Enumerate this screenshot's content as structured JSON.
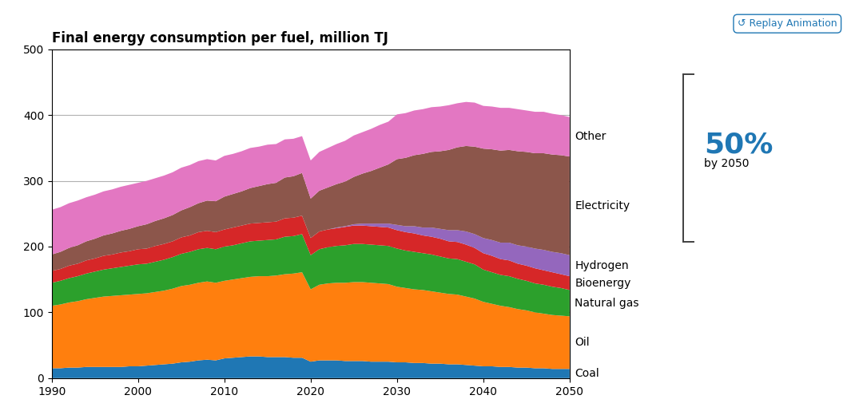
{
  "chart_data": {
    "type": "area",
    "stacked": true,
    "title": "Final energy consumption per fuel, million TJ",
    "x": [
      1990,
      1991,
      1992,
      1993,
      1994,
      1995,
      1996,
      1997,
      1998,
      1999,
      2000,
      2001,
      2002,
      2003,
      2004,
      2005,
      2006,
      2007,
      2008,
      2009,
      2010,
      2011,
      2012,
      2013,
      2014,
      2015,
      2016,
      2017,
      2018,
      2019,
      2020,
      2021,
      2022,
      2023,
      2024,
      2025,
      2026,
      2027,
      2028,
      2029,
      2030,
      2031,
      2032,
      2033,
      2034,
      2035,
      2036,
      2037,
      2038,
      2039,
      2040,
      2041,
      2042,
      2043,
      2044,
      2045,
      2046,
      2047,
      2048,
      2049,
      2050
    ],
    "series": [
      {
        "name": "Coal",
        "values": [
          15,
          15,
          16,
          16,
          17,
          17,
          17,
          17,
          17,
          18,
          18,
          19,
          20,
          21,
          22,
          24,
          25,
          27,
          28,
          27,
          30,
          31,
          32,
          33,
          33,
          32,
          32,
          32,
          31,
          31,
          25,
          27,
          27,
          27,
          26,
          26,
          26,
          25,
          25,
          25,
          24,
          24,
          23,
          23,
          22,
          22,
          21,
          21,
          20,
          19,
          18,
          18,
          17,
          17,
          16,
          16,
          15,
          15,
          14,
          14,
          14
        ]
      },
      {
        "name": "Oil",
        "values": [
          95,
          97,
          99,
          101,
          103,
          105,
          107,
          108,
          109,
          109,
          110,
          110,
          111,
          112,
          114,
          116,
          117,
          118,
          119,
          118,
          118,
          119,
          120,
          121,
          122,
          123,
          124,
          126,
          128,
          130,
          110,
          115,
          117,
          118,
          119,
          120,
          120,
          120,
          119,
          118,
          115,
          113,
          112,
          111,
          110,
          108,
          107,
          106,
          104,
          102,
          98,
          95,
          93,
          91,
          89,
          87,
          85,
          83,
          82,
          81,
          80
        ]
      },
      {
        "name": "Natural gas",
        "values": [
          35,
          36,
          37,
          38,
          39,
          40,
          41,
          42,
          43,
          44,
          45,
          45,
          46,
          47,
          48,
          49,
          50,
          51,
          51,
          51,
          52,
          52,
          53,
          54,
          54,
          55,
          55,
          57,
          57,
          58,
          52,
          54,
          55,
          56,
          57,
          58,
          58,
          58,
          58,
          58,
          58,
          57,
          57,
          56,
          56,
          55,
          54,
          54,
          53,
          52,
          49,
          48,
          47,
          47,
          46,
          45,
          44,
          44,
          43,
          42,
          40
        ]
      },
      {
        "name": "Bioenergy",
        "values": [
          18,
          18,
          19,
          19,
          20,
          20,
          21,
          21,
          22,
          22,
          23,
          23,
          24,
          24,
          24,
          25,
          25,
          26,
          26,
          26,
          26,
          27,
          27,
          27,
          27,
          27,
          27,
          28,
          28,
          28,
          26,
          27,
          27,
          27,
          28,
          28,
          28,
          28,
          28,
          28,
          28,
          28,
          28,
          27,
          27,
          27,
          26,
          26,
          26,
          25,
          25,
          25,
          24,
          24,
          23,
          23,
          23,
          22,
          22,
          21,
          21
        ]
      },
      {
        "name": "Hydrogen",
        "values": [
          0,
          0,
          0,
          0,
          0,
          0,
          0,
          0,
          0,
          0,
          0,
          0,
          0,
          0,
          0,
          0,
          0,
          0,
          0,
          0,
          0,
          0,
          0,
          0,
          0,
          0,
          0,
          0,
          0,
          0,
          0,
          0,
          0,
          1,
          1,
          2,
          3,
          4,
          5,
          6,
          8,
          9,
          11,
          12,
          14,
          15,
          17,
          18,
          20,
          21,
          23,
          24,
          25,
          27,
          28,
          29,
          30,
          31,
          31,
          32,
          32
        ]
      },
      {
        "name": "Electricity",
        "values": [
          25,
          26,
          27,
          28,
          29,
          30,
          31,
          32,
          33,
          34,
          35,
          37,
          38,
          39,
          40,
          41,
          43,
          44,
          46,
          47,
          50,
          51,
          52,
          54,
          56,
          58,
          59,
          62,
          63,
          65,
          60,
          62,
          64,
          66,
          68,
          72,
          76,
          80,
          85,
          90,
          100,
          104,
          108,
          112,
          115,
          118,
          122,
          126,
          130,
          133,
          136,
          138,
          140,
          141,
          143,
          144,
          145,
          147,
          148,
          149,
          150
        ]
      },
      {
        "name": "Other",
        "values": [
          68,
          68,
          68,
          68,
          67,
          67,
          67,
          67,
          67,
          67,
          66,
          66,
          65,
          65,
          65,
          65,
          64,
          64,
          63,
          62,
          62,
          61,
          61,
          61,
          60,
          60,
          59,
          58,
          57,
          56,
          58,
          59,
          60,
          61,
          62,
          63,
          63,
          64,
          65,
          65,
          68,
          68,
          68,
          68,
          68,
          68,
          68,
          67,
          67,
          67,
          65,
          65,
          65,
          64,
          64,
          63,
          63,
          63,
          62,
          61,
          60
        ]
      }
    ],
    "xlim": [
      1990,
      2050
    ],
    "xticks": [
      1990,
      2000,
      2010,
      2020,
      2030,
      2040,
      2050
    ],
    "ylim": [
      0,
      500
    ],
    "yticks": [
      0,
      100,
      200,
      300,
      400,
      500
    ],
    "grid": true,
    "annotations": [
      {
        "text": "50%",
        "note": "by 2050",
        "ymin": 207,
        "ymax": 462
      },
      {
        "text": "↺ Replay Animation"
      }
    ]
  }
}
